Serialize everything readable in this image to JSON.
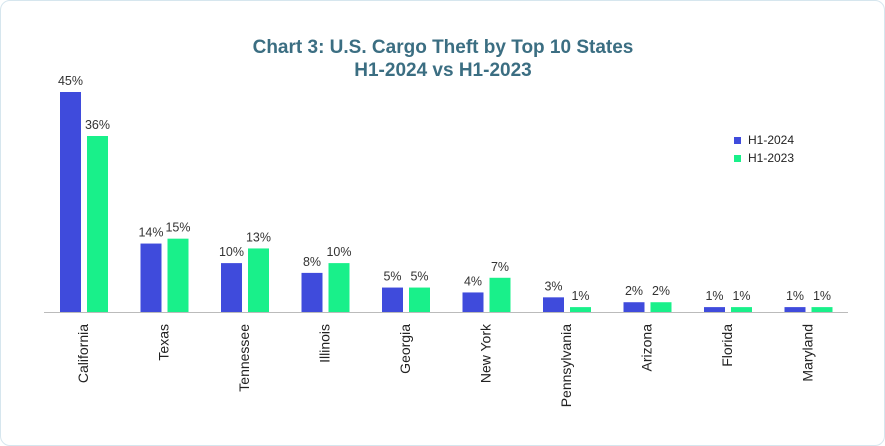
{
  "chart_data": {
    "type": "bar",
    "title": "Chart 3: U.S. Cargo Theft by Top 10 States",
    "subtitle": "H1-2024 vs H1-2023",
    "xlabel": "",
    "ylabel": "",
    "ylim": [
      0,
      45
    ],
    "grid": false,
    "legend_position": "right",
    "categories": [
      "California",
      "Texas",
      "Tennessee",
      "Illinois",
      "Georgia",
      "New York",
      "Pennsylvania",
      "Arizona",
      "Florida",
      "Maryland"
    ],
    "series": [
      {
        "name": "H1-2024",
        "color": "#3f4bdc",
        "values": [
          45,
          14,
          10,
          8,
          5,
          4,
          3,
          2,
          1,
          1
        ],
        "labels": [
          "45%",
          "14%",
          "10%",
          "8%",
          "5%",
          "4%",
          "3%",
          "2%",
          "1%",
          "1%"
        ]
      },
      {
        "name": "H1-2023",
        "color": "#19f08a",
        "values": [
          36,
          15,
          13,
          10,
          5,
          7,
          1,
          2,
          1,
          1
        ],
        "labels": [
          "36%",
          "15%",
          "13%",
          "10%",
          "5%",
          "7%",
          "1%",
          "2%",
          "1%",
          "1%"
        ]
      }
    ]
  },
  "colors": {
    "title": "#3b6e82",
    "axis": "#bbbbbb"
  }
}
